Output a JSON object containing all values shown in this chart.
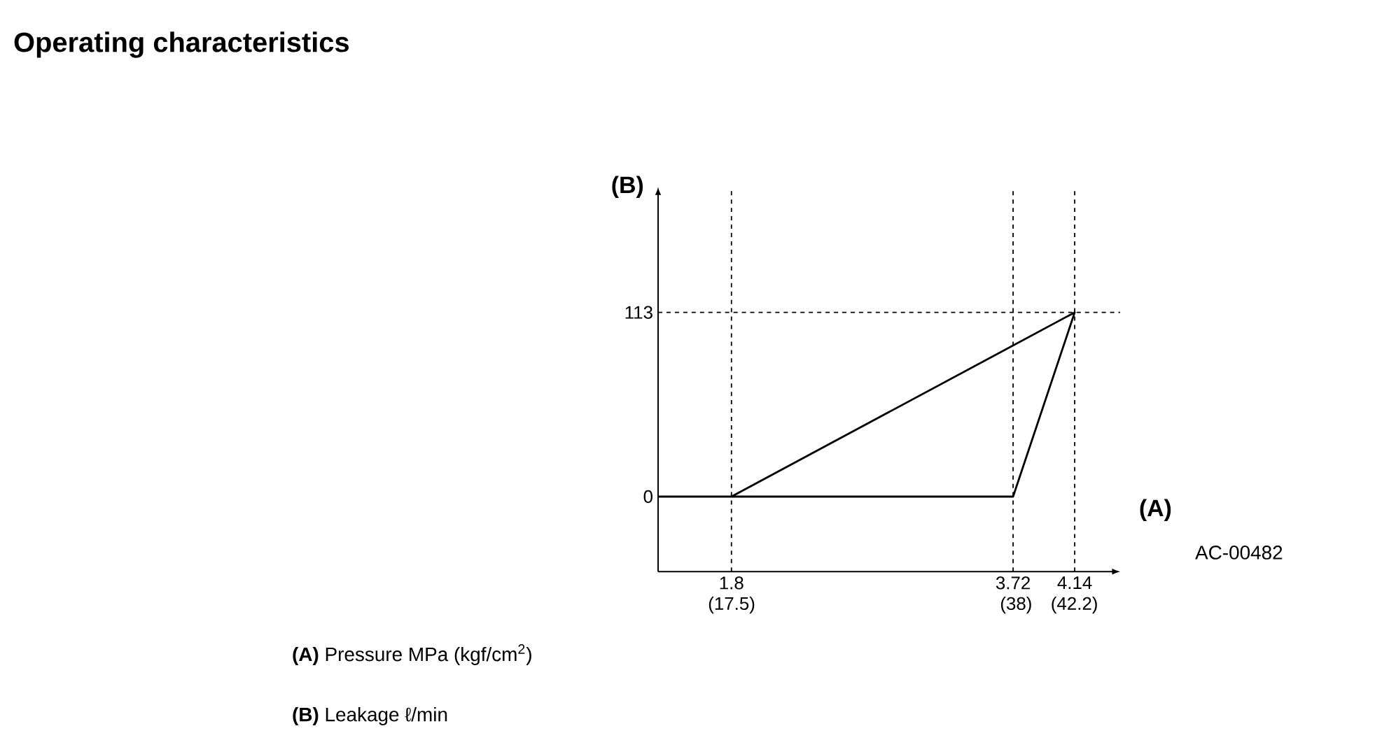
{
  "chart_data": {
    "type": "line",
    "title": "Operating characteristics",
    "xlabel": "(A)",
    "ylabel": "(B)",
    "x": [
      1.3,
      3.72,
      4.14,
      1.8
    ],
    "series": [
      {
        "color": "#000000",
        "values": [
          0,
          0,
          113,
          0
        ]
      }
    ],
    "xlim": [
      1.3,
      4.45
    ],
    "ylim": [
      -46,
      190
    ],
    "xticks": [
      1.8,
      3.72,
      4.14
    ],
    "x2lim": [
      12.2,
      45.5
    ],
    "x2ticks": [
      {
        "value": 17.5,
        "label": "(17.5)"
      },
      {
        "value": 38,
        "label": "(38)"
      },
      {
        "value": 42.2,
        "label": "(42.2)"
      }
    ],
    "yticks": [
      0,
      113
    ],
    "ref_lines": [
      {
        "axis": "x",
        "value": 1.8,
        "line_style": "dashed"
      },
      {
        "axis": "x",
        "value": 3.72,
        "line_style": "dashed"
      },
      {
        "axis": "x",
        "value": 4.14,
        "line_style": "dashed"
      },
      {
        "axis": "y",
        "value": 113,
        "line_style": "dashed"
      }
    ],
    "annotations": [
      "AC-00482",
      "**(A)**   Pressure MPa (kgf/cm$^{2}$)",
      "**(B)**   Leakage ℓ/min"
    ],
    "grid": false,
    "marker": "none",
    "line_style": "solid"
  }
}
